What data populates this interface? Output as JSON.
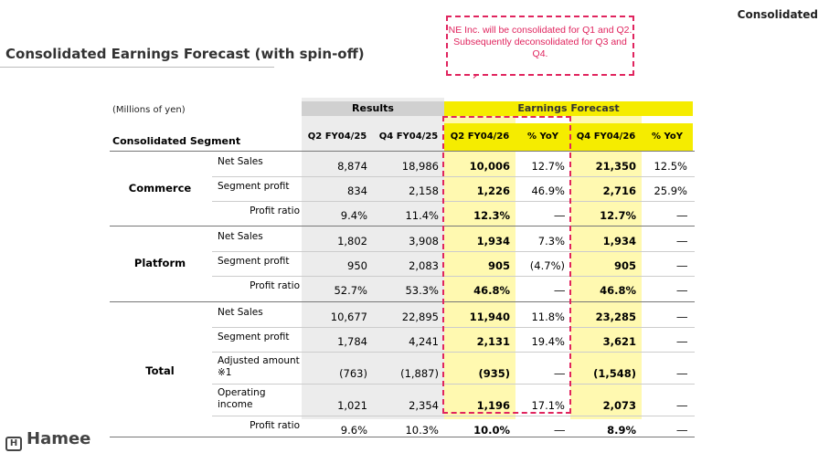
{
  "header": {
    "corner_label": "Consolidated",
    "title": "Consolidated Earnings Forecast (with spin-off)"
  },
  "callout": {
    "text": "NE Inc. will be consolidated for Q1 and Q2. Subsequently deconsolidated for Q3 and Q4."
  },
  "table": {
    "units": "(Millions of yen)",
    "segment_header": "Consolidated Segment",
    "group_results": "Results",
    "group_forecast": "Earnings Forecast",
    "columns": [
      "Q2 FY04/25",
      "Q4 FY04/25",
      "Q2 FY04/26",
      "% YoY",
      "Q4 FY04/26",
      "% YoY"
    ],
    "sections": [
      {
        "name": "Commerce",
        "rows": [
          {
            "label": "Net Sales",
            "values": [
              "8,874",
              "18,986",
              "10,006",
              "12.7%",
              "21,350",
              "12.5%"
            ]
          },
          {
            "label": "Segment profit",
            "values": [
              "834",
              "2,158",
              "1,226",
              "46.9%",
              "2,716",
              "25.9%"
            ]
          },
          {
            "label": "Profit ratio",
            "values": [
              "9.4%",
              "11.4%",
              "12.3%",
              "―",
              "12.7%",
              "―"
            ]
          }
        ]
      },
      {
        "name": "Platform",
        "rows": [
          {
            "label": "Net Sales",
            "values": [
              "1,802",
              "3,908",
              "1,934",
              "7.3%",
              "1,934",
              "―"
            ]
          },
          {
            "label": "Segment profit",
            "values": [
              "950",
              "2,083",
              "905",
              "(4.7%)",
              "905",
              "―"
            ]
          },
          {
            "label": "Profit ratio",
            "values": [
              "52.7%",
              "53.3%",
              "46.8%",
              "―",
              "46.8%",
              "―"
            ]
          }
        ]
      },
      {
        "name": "Total",
        "rows": [
          {
            "label": "Net Sales",
            "values": [
              "10,677",
              "22,895",
              "11,940",
              "11.8%",
              "23,285",
              "―"
            ]
          },
          {
            "label": "Segment profit",
            "values": [
              "1,784",
              "4,241",
              "2,131",
              "19.4%",
              "3,621",
              "―"
            ]
          },
          {
            "label": "Adjusted amount ※1",
            "values": [
              "(763)",
              "(1,887)",
              "(935)",
              "―",
              "(1,548)",
              "―"
            ]
          },
          {
            "label": "Operating income",
            "values": [
              "1,021",
              "2,354",
              "1,196",
              "17.1%",
              "2,073",
              "―"
            ]
          },
          {
            "label": "Profit ratio",
            "values": [
              "9.6%",
              "10.3%",
              "10.0%",
              "―",
              "8.9%",
              "―"
            ]
          }
        ]
      }
    ]
  },
  "brand": {
    "logo_text": "Hamee",
    "accent_yellow": "#f5ec00",
    "callout_color": "#e0245e"
  }
}
